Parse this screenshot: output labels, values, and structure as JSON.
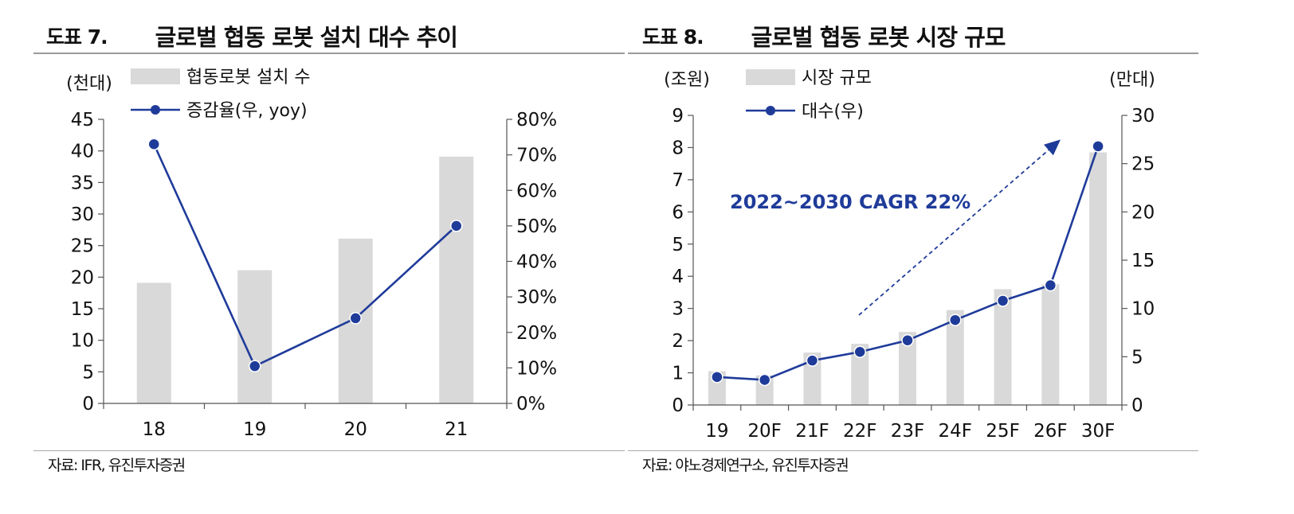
{
  "left": {
    "fig_num": "도표 7.",
    "title": "글로벌 협동 로봇 설치 대수 추이",
    "source": "자료: IFR, 유진투자증권",
    "chart_data": {
      "type": "bar",
      "categories": [
        "18",
        "19",
        "20",
        "21"
      ],
      "series": [
        {
          "name": "협동로봇 설치 수",
          "kind": "bar",
          "axis": "left",
          "values": [
            19.1,
            21.1,
            26.1,
            39.1
          ]
        },
        {
          "name": "증감율(우, yoy)",
          "kind": "line",
          "axis": "right",
          "values": [
            73,
            10.5,
            24,
            50
          ]
        }
      ],
      "left_unit": "(천대)",
      "left_ylim": [
        0,
        45
      ],
      "left_ticks": [
        "45",
        "40",
        "35",
        "30",
        "25",
        "20",
        "15",
        "10",
        "5",
        "0"
      ],
      "right_ylim": [
        0,
        80
      ],
      "right_ticks": [
        "80%",
        "70%",
        "60%",
        "50%",
        "40%",
        "30%",
        "20%",
        "10%",
        "0%"
      ],
      "grid": false,
      "legend_position": "top-left",
      "colors": {
        "bar": "#d9d9d9",
        "line": "#1f3b9a"
      }
    }
  },
  "right": {
    "fig_num": "도표 8.",
    "title": "글로벌 협동 로봇 시장 규모",
    "source": "자료: 야노경제연구소, 유진투자증권",
    "chart_data": {
      "type": "bar",
      "categories": [
        "19",
        "20F",
        "21F",
        "22F",
        "23F",
        "24F",
        "25F",
        "26F",
        "30F"
      ],
      "series": [
        {
          "name": "시장 규모",
          "kind": "bar",
          "axis": "left",
          "values": [
            1.05,
            0.92,
            1.63,
            1.9,
            2.27,
            2.95,
            3.6,
            3.75,
            7.85
          ]
        },
        {
          "name": "대수(우)",
          "kind": "line",
          "axis": "right",
          "values": [
            2.9,
            2.6,
            4.6,
            5.5,
            6.7,
            8.8,
            10.8,
            12.4,
            26.8
          ]
        }
      ],
      "left_unit": "(조원)",
      "left_ylim": [
        0,
        9
      ],
      "left_ticks": [
        "9",
        "8",
        "7",
        "6",
        "5",
        "4",
        "3",
        "2",
        "1",
        "0"
      ],
      "right_unit": "(만대)",
      "right_ylim": [
        0,
        30
      ],
      "right_ticks": [
        "30",
        "25",
        "20",
        "15",
        "10",
        "5",
        "0"
      ],
      "annotation": "2022~2030 CAGR 22%",
      "grid": false,
      "legend_position": "top-left",
      "colors": {
        "bar": "#d9d9d9",
        "line": "#1f3b9a",
        "annotation": "#1f3b9a"
      }
    }
  }
}
